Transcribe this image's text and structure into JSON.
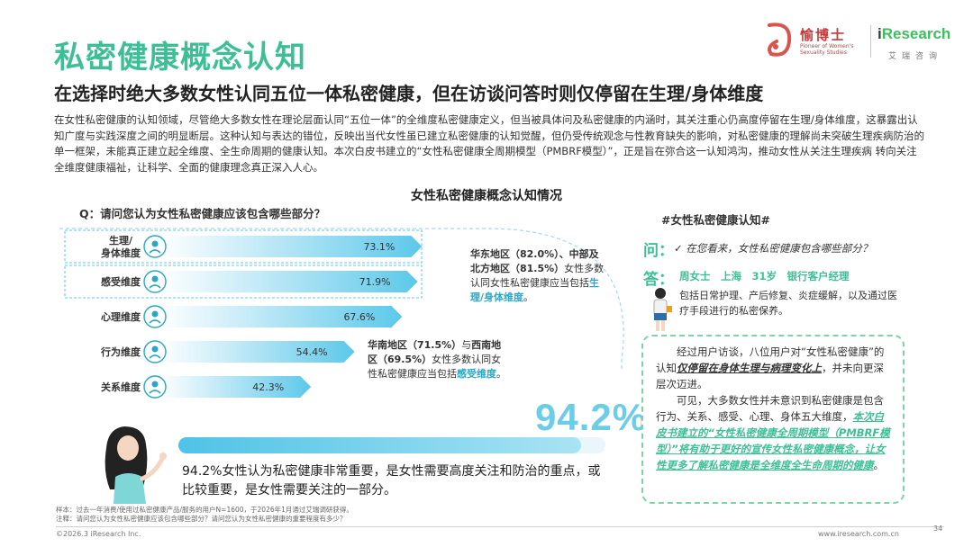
{
  "header": {
    "title": "私密健康概念认知",
    "subtitle": "在选择时绝大多数女性认同五位一体私密健康，但在访谈问答时则仅停留在生理/身体维度",
    "body": "在女性私密健康的认知领域，尽管绝大多数女性在理论层面认同“五位一体”的全维度私密健康定义，但当被具体问及私密健康的内涵时，其关注重心仍高度停留在生理/身体维度，这暴露出认知广度与实践深度之间的明显断层。这种认知与表达的错位，反映出当代女性虽已建立私密健康的认知觉醒，但仍受传统观念与性教育缺失的影响，对私密健康的理解尚未突破生理疾病防治的单一框架，未能真正建立起全维度、全生命周期的健康认知。本次白皮书建立的“女性私密健康全周期模型（PMBRF模型）”，正是旨在弥合这一认知鸿沟，推动女性从关注生理疾病 转向关注全维度健康福祉，让科学、全面的健康理念真正深入人心。"
  },
  "logos": {
    "yu_name": "愉博士",
    "yu_sub": "Pioneer of Women's Sexuality Studies",
    "ir_i": "i",
    "ir_rest": "Research",
    "ir_sub": "艾瑞咨询"
  },
  "chart_data": {
    "type": "bar",
    "title": "女性私密健康概念认知情况",
    "question": "Q：请问您认为女性私密健康应该包含哪些部分？",
    "categories": [
      "生理/身体维度",
      "感受维度",
      "心理维度",
      "行为维度",
      "关系维度"
    ],
    "category_lines": [
      [
        "生理/",
        "身体维度"
      ],
      [
        "感受维度"
      ],
      [
        "心理维度"
      ],
      [
        "行为维度"
      ],
      [
        "关系维度"
      ]
    ],
    "values": [
      73.1,
      71.9,
      67.6,
      54.4,
      42.3
    ],
    "value_labels": [
      "73.1%",
      "71.9%",
      "67.6%",
      "54.4%",
      "42.3%"
    ],
    "icons": [
      "uterus-icon",
      "heart-hands-icon",
      "head-icon",
      "heart-person-icon",
      "couple-icon"
    ],
    "highlighted": [
      true,
      true,
      false,
      false,
      false
    ],
    "bar_color": "#5cc8ea",
    "xlim": [
      0,
      100
    ]
  },
  "callouts": {
    "c1_a": "华东地区（82.0%）、中部及北方地区（81.5%）",
    "c1_b": "女性多数认同女性私密健康应当包括",
    "c1_c": "生理/身体维度",
    "c1_d": "。",
    "c2_a": "华南地区（71.5%）",
    "c2_b": "与",
    "c2_c": "西南地区（69.5%）",
    "c2_d": "女性多数认同女性私密健康应当包括",
    "c2_e": "感受维度",
    "c2_f": "。"
  },
  "overall": {
    "value": 94.2,
    "label": "94.2%",
    "desc": "94.2%女性认为私密健康非常重要，是女性需要高度关注和防治的重点，或比较重要，是女性需要关注的一部分。"
  },
  "interview": {
    "header": "#女性私密健康认知#",
    "q_label": "问：",
    "q_text": "✓ 在您看来，女性私密健康包含哪些部分？",
    "a_label": "答：",
    "a_who": "周女士　上海　31岁　银行客户经理",
    "a_text": "包括日常护理、产后修复、炎症缓解，以及通过医疗手段进行的私密保养。",
    "s1_a": "经过用户访谈，八位用户对“女性私密健康”的认知",
    "s1_b": "仅停留在身体生理与病理变化上",
    "s1_c": "，并未向更深层次迈进。",
    "s2_a": "可见，大多数女性并未意识到私密健康是包含行为、关系、感受、心理、身体五大维度，",
    "s2_b": "本次白皮书建立的“女性私密健康全周期模型（PMBRF模型）”",
    "s2_c": "将有助于更好的宣传女性私密健康概念，让女性更多了解私密健康是全维度全生命周期的健康",
    "s2_d": "。"
  },
  "footer": {
    "sample": "样本：过去一年消费/使用过私密健康产品/服务的用户N=1600，于2026年1月通过艾瑞调研获得。",
    "note": "注释：请问您认为女性私密健康应该包含哪些部分？请问您认为女性私密健康的重要程度有多少？",
    "copyright": "©2026.3 iResearch Inc.",
    "website": "www.iresearch.com.cn",
    "page": "34"
  }
}
